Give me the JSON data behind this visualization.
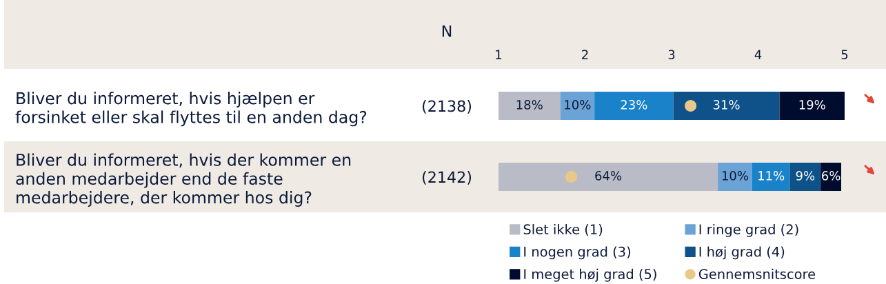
{
  "chart_data": {
    "type": "bar",
    "orientation": "horizontal",
    "stacked": true,
    "categories": [
      "Bliver du informeret, hvis hjælpen er forsinket eller skal flyttes til en anden dag?",
      "Bliver du informeret, hvis der kommer en anden medarbejder end de faste medarbejdere, der kommer hos dig?"
    ],
    "series": [
      {
        "name": "Slet ikke (1)",
        "color": "#b9bcc6",
        "values": [
          18,
          64
        ],
        "value_labels": [
          "18%",
          "64%"
        ]
      },
      {
        "name": "I ringe grad (2)",
        "color": "#6ca3d6",
        "values": [
          10,
          10
        ],
        "value_labels": [
          "10%",
          "10%"
        ]
      },
      {
        "name": "I nogen grad (3)",
        "color": "#1a82c8",
        "values": [
          23,
          11
        ],
        "value_labels": [
          "23%",
          "11%"
        ]
      },
      {
        "name": "I høj grad (4)",
        "color": "#0f5189",
        "values": [
          31,
          9
        ],
        "value_labels": [
          "31%",
          "9%"
        ]
      },
      {
        "name": "I meget høj grad (5)",
        "color": "#000c2e",
        "values": [
          19,
          6
        ],
        "value_labels": [
          "19%",
          "6%"
        ]
      },
      {
        "name": "Gennemsnitscore",
        "type": "scatter",
        "axis": "x2",
        "color": "#e9c987",
        "marker": "circle",
        "values": [
          3.22,
          1.84
        ]
      }
    ],
    "bands": [
      {
        "axis": "y",
        "from": "Bliver du informeret, hvis der kommer en anden medarbejder end de faste medarbejdere, der kommer hos dig?",
        "to": "Bliver du informeret, hvis der kommer en anden medarbejder end de faste medarbejdere, der kommer hos dig?",
        "color": "#efeae3"
      }
    ],
    "xlim": [
      0,
      101
    ],
    "x2lim": [
      1,
      5
    ],
    "x2ticks": [
      1,
      2,
      3,
      4,
      5
    ],
    "tick_labels": [
      "y",
      "x2"
    ],
    "legend": "bottom",
    "annotations": [
      "N",
      "(2138)",
      "(2142)"
    ]
  }
}
